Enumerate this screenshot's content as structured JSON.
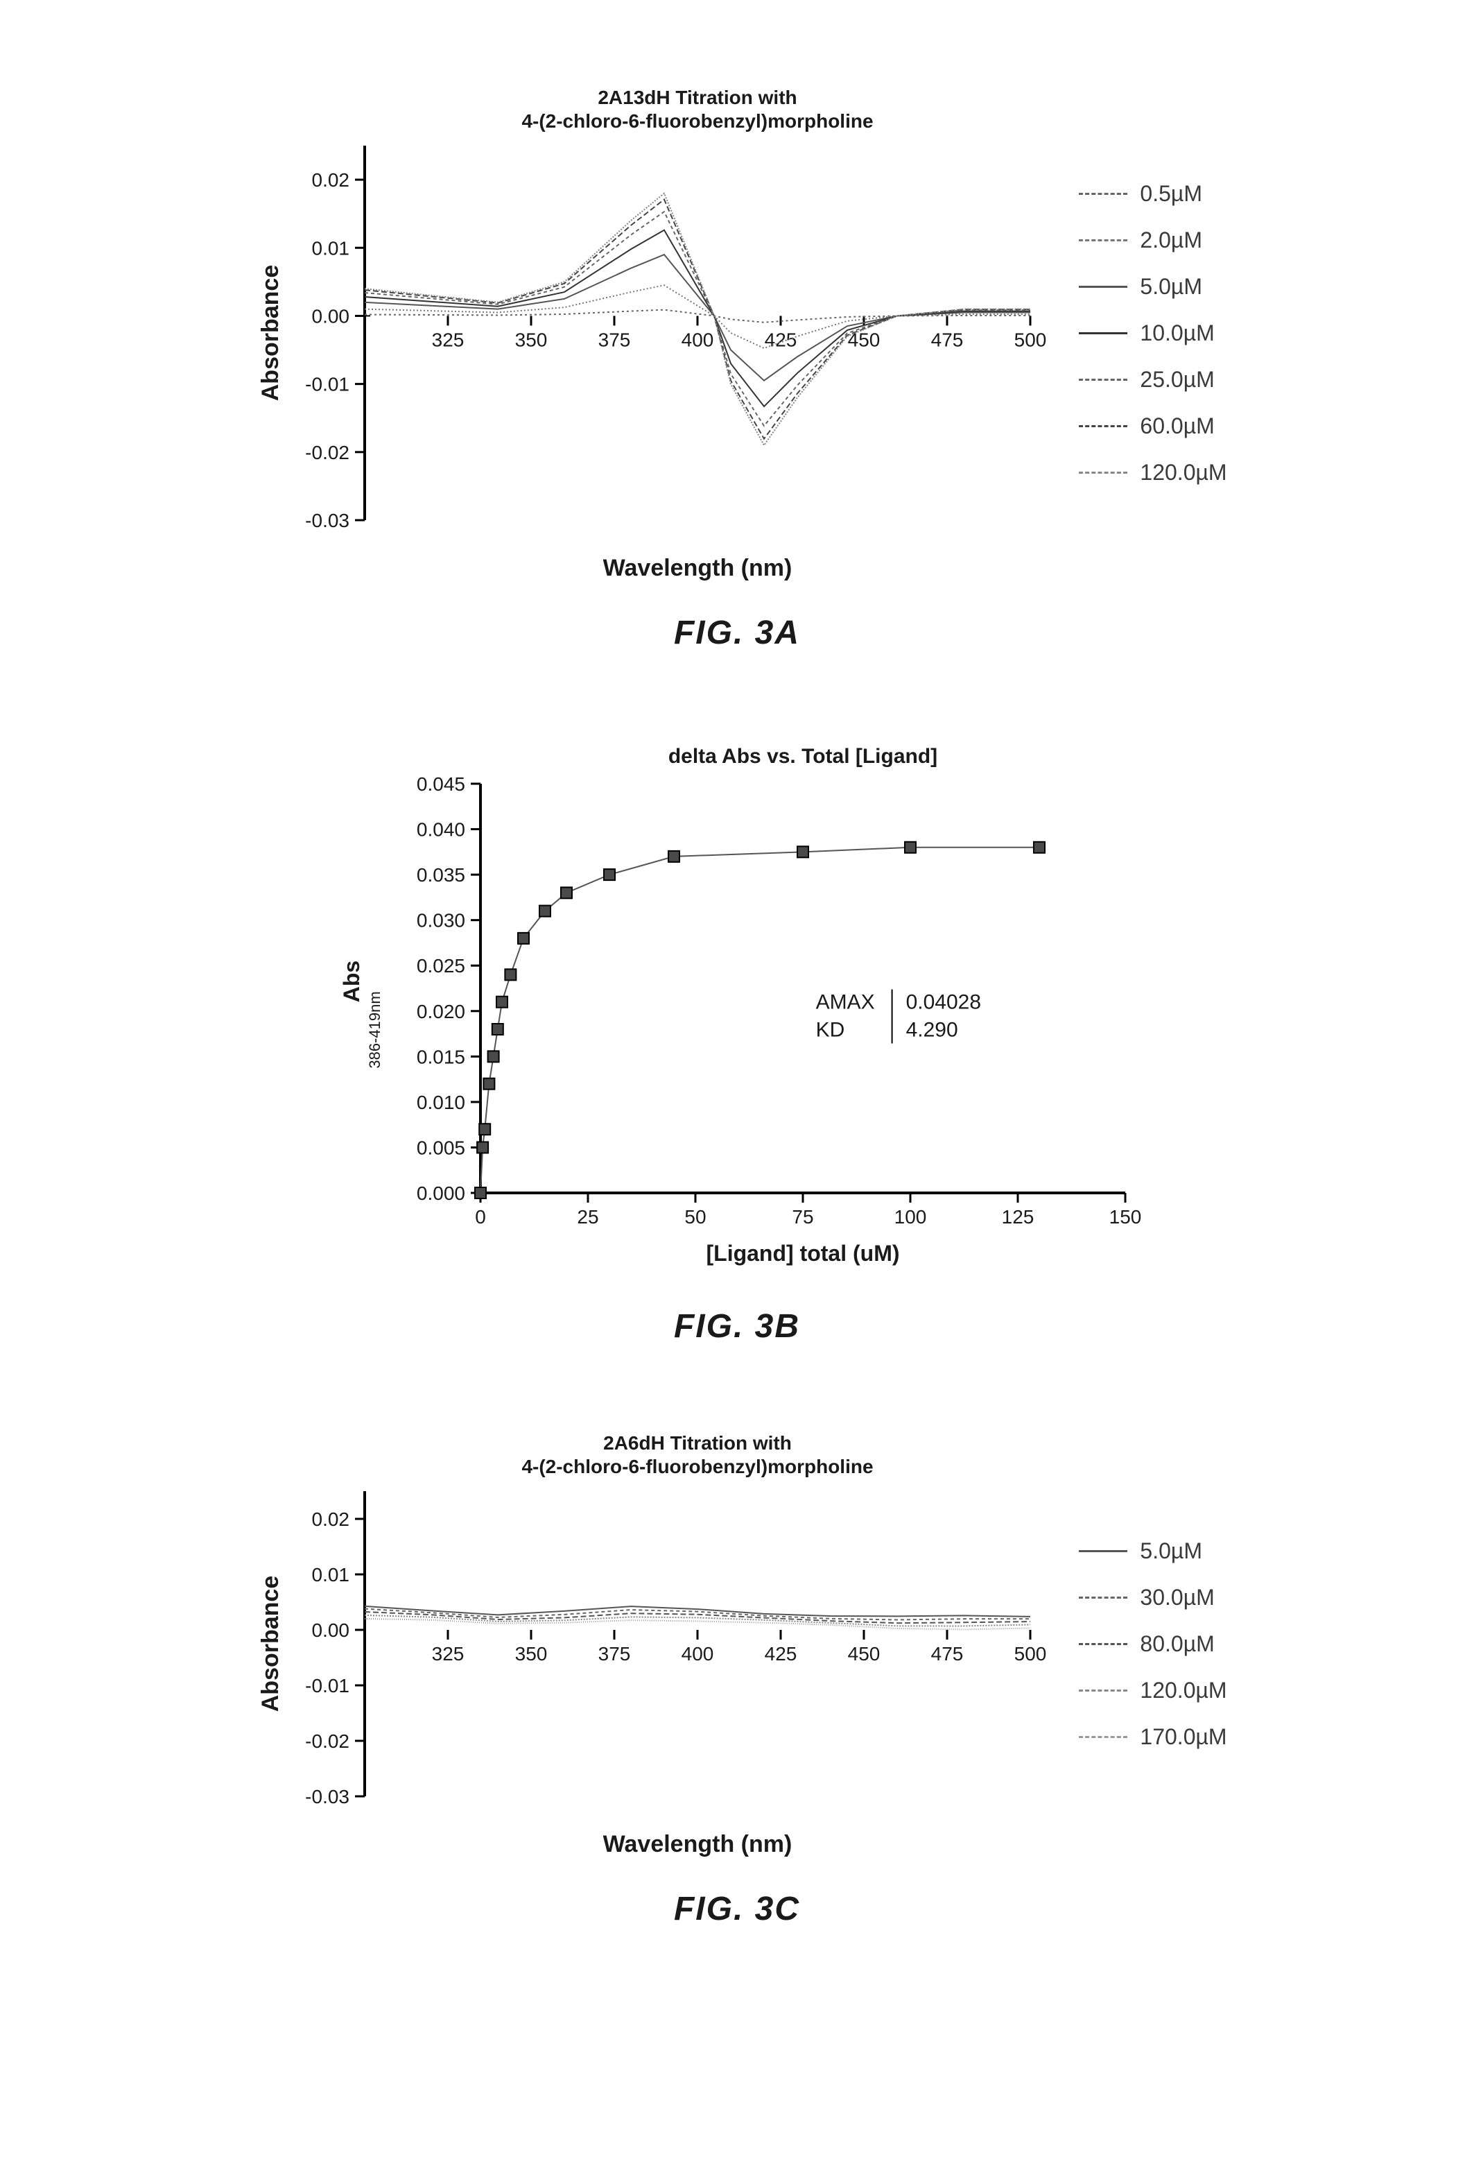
{
  "fig3a": {
    "type": "line",
    "title_line1": "2A13dH Titration with",
    "title_line2": "4-(2-chloro-6-fluorobenzyl)morpholine",
    "xlabel": "Wavelength (nm)",
    "ylabel": "Absorbance",
    "background_color": "#ffffff",
    "axis_color": "#000000",
    "xlim": [
      300,
      500
    ],
    "ylim": [
      -0.03,
      0.025
    ],
    "xticks": [
      325,
      350,
      375,
      400,
      425,
      450,
      475,
      500
    ],
    "yticks": [
      -0.03,
      -0.02,
      -0.01,
      0.0,
      0.01,
      0.02
    ],
    "ytick_labels": [
      "-0.03",
      "-0.02",
      "-0.01",
      "0.00",
      "0.01",
      "0.02"
    ],
    "title_fontsize": 28,
    "axis_label_fontsize": 34,
    "tick_fontsize": 28,
    "line_width": 2,
    "series": [
      {
        "label": "0.5µM",
        "dash": "3,4",
        "color": "#666666",
        "scale": 0.05
      },
      {
        "label": "2.0µM",
        "dash": "2,3",
        "color": "#777777",
        "scale": 0.25
      },
      {
        "label": "5.0µM",
        "dash": "0",
        "color": "#555555",
        "scale": 0.5
      },
      {
        "label": "10.0µM",
        "dash": "0",
        "color": "#333333",
        "scale": 0.7
      },
      {
        "label": "25.0µM",
        "dash": "5,4",
        "color": "#666666",
        "scale": 0.85
      },
      {
        "label": "60.0µM",
        "dash": "8,4",
        "color": "#444444",
        "scale": 0.95
      },
      {
        "label": "120.0µM",
        "dash": "2,2",
        "color": "#888888",
        "scale": 1.0
      }
    ],
    "shape_x": [
      300,
      320,
      340,
      360,
      380,
      390,
      400,
      405,
      410,
      420,
      430,
      445,
      460,
      480,
      500
    ],
    "shape_y": [
      0.004,
      0.003,
      0.002,
      0.005,
      0.014,
      0.018,
      0.006,
      0.0,
      -0.01,
      -0.019,
      -0.012,
      -0.003,
      0.0,
      0.001,
      0.001
    ]
  },
  "fig3b": {
    "type": "scatter-line",
    "title": "delta Abs vs. Total [Ligand]",
    "xlabel": "[Ligand] total (uM)",
    "ylabel": "Abs",
    "ylabel_sub": "386-419nm",
    "background_color": "#ffffff",
    "axis_color": "#000000",
    "marker_color": "#4a4a4a",
    "marker_border": "#000000",
    "marker_size": 16,
    "line_color": "#555555",
    "line_width": 2,
    "xlim": [
      0,
      150
    ],
    "ylim": [
      0.0,
      0.045
    ],
    "xticks": [
      0,
      25,
      50,
      75,
      100,
      125,
      150
    ],
    "yticks": [
      0.0,
      0.005,
      0.01,
      0.015,
      0.02,
      0.025,
      0.03,
      0.035,
      0.04,
      0.045
    ],
    "ytick_labels": [
      "0.000",
      "0.005",
      "0.010",
      "0.015",
      "0.020",
      "0.025",
      "0.030",
      "0.035",
      "0.040",
      "0.045"
    ],
    "title_fontsize": 30,
    "axis_label_fontsize": 32,
    "tick_fontsize": 28,
    "points_x": [
      0,
      0.5,
      1,
      2,
      3,
      4,
      5,
      7,
      10,
      15,
      20,
      30,
      45,
      75,
      100,
      130
    ],
    "points_y": [
      0.0,
      0.005,
      0.007,
      0.012,
      0.015,
      0.018,
      0.021,
      0.024,
      0.028,
      0.031,
      0.033,
      0.035,
      0.037,
      0.0375,
      0.038,
      0.038
    ],
    "fit": {
      "AMAX_label": "AMAX",
      "AMAX_value": "0.04028",
      "KD_label": "KD",
      "KD_value": "4.290"
    }
  },
  "fig3c": {
    "type": "line",
    "title_line1": "2A6dH Titration with",
    "title_line2": "4-(2-chloro-6-fluorobenzyl)morpholine",
    "xlabel": "Wavelength (nm)",
    "ylabel": "Absorbance",
    "background_color": "#ffffff",
    "axis_color": "#000000",
    "xlim": [
      300,
      500
    ],
    "ylim": [
      -0.03,
      0.025
    ],
    "xticks": [
      325,
      350,
      375,
      400,
      425,
      450,
      475,
      500
    ],
    "yticks": [
      -0.03,
      -0.02,
      -0.01,
      0.0,
      0.01,
      0.02
    ],
    "ytick_labels": [
      "-0.03",
      "-0.02",
      "-0.01",
      "0.00",
      "0.01",
      "0.02"
    ],
    "title_fontsize": 28,
    "axis_label_fontsize": 34,
    "tick_fontsize": 28,
    "line_width": 2,
    "series": [
      {
        "label": "5.0µM",
        "dash": "0",
        "color": "#555555",
        "offset": 0.002
      },
      {
        "label": "30.0µM",
        "dash": "5,4",
        "color": "#666666",
        "offset": 0.0015
      },
      {
        "label": "80.0µM",
        "dash": "8,4",
        "color": "#555555",
        "offset": 0.001
      },
      {
        "label": "120.0µM",
        "dash": "2,2",
        "color": "#888888",
        "offset": 0.0005
      },
      {
        "label": "170.0µM",
        "dash": "1,2",
        "color": "#999999",
        "offset": 0.0
      }
    ],
    "noise_x": [
      300,
      320,
      340,
      360,
      380,
      400,
      420,
      440,
      460,
      480,
      500
    ],
    "noise_y": [
      0.002,
      0.0015,
      0.001,
      0.0015,
      0.002,
      0.0015,
      0.001,
      0.0008,
      0.0005,
      0.0003,
      0.0002
    ]
  },
  "labels": {
    "fig3a": "FIG.  3A",
    "fig3b": "FIG.  3B",
    "fig3c": "FIG.  3C"
  }
}
